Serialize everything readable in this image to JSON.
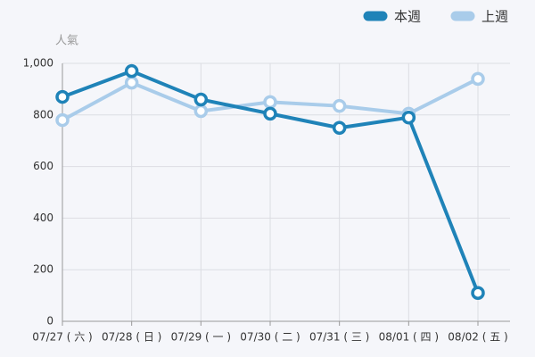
{
  "chart_data": {
    "type": "line",
    "y_axis_label": "人氣",
    "categories": [
      "07/27 ( 六 )",
      "07/28 ( 日 )",
      "07/29 ( 一 )",
      "07/30 ( 二 )",
      "07/31 ( 三 )",
      "08/01 ( 四 )",
      "08/02 ( 五 )"
    ],
    "series": [
      {
        "name": "本週",
        "color": "#1f83b8",
        "values": [
          870,
          970,
          860,
          805,
          750,
          790,
          110
        ]
      },
      {
        "name": "上週",
        "color": "#a9ccea",
        "values": [
          780,
          925,
          815,
          850,
          835,
          805,
          940
        ]
      }
    ],
    "ylim": [
      0,
      1000
    ],
    "yticks": [
      0,
      200,
      400,
      600,
      800,
      {
        "value": 1000,
        "label": "1,000"
      }
    ],
    "grid": true,
    "legend": "top-right"
  }
}
